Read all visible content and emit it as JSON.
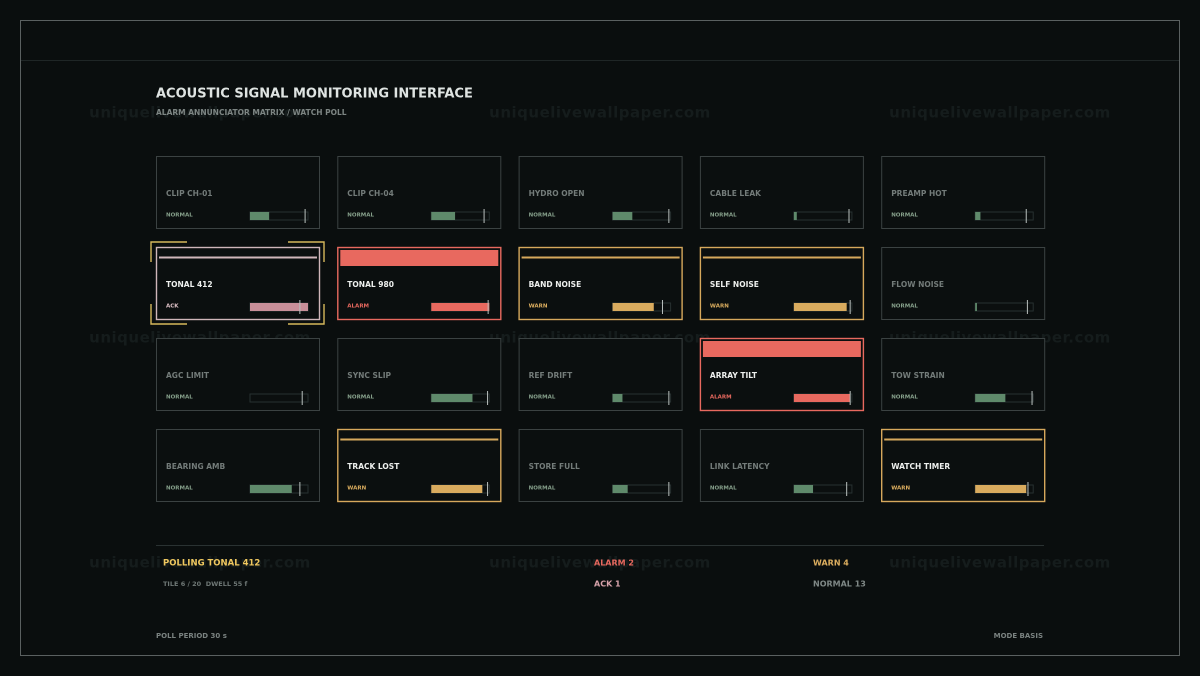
{
  "header": {
    "title": "ACOUSTIC SIGNAL MONITORING INTERFACE",
    "subtitle": "ALARM ANNUNCIATOR MATRIX / WATCH POLL"
  },
  "watermark": "uniquelivewallpaper.com",
  "tiles": [
    {
      "label": "CLIP CH-01",
      "status": "NORMAL",
      "level": 33,
      "threshold": 95
    },
    {
      "label": "CLIP CH-04",
      "status": "NORMAL",
      "level": 41,
      "threshold": 91
    },
    {
      "label": "HYDRO OPEN",
      "status": "NORMAL",
      "level": 34,
      "threshold": 97
    },
    {
      "label": "CABLE LEAK",
      "status": "NORMAL",
      "level": 5,
      "threshold": 95
    },
    {
      "label": "PREAMP HOT",
      "status": "NORMAL",
      "level": 9,
      "threshold": 88
    },
    {
      "label": "TONAL 412",
      "status": "ACK",
      "level": 100,
      "threshold": 86,
      "selected": true
    },
    {
      "label": "TONAL 980",
      "status": "ALARM",
      "level": 100,
      "threshold": 98
    },
    {
      "label": "BAND NOISE",
      "status": "WARN",
      "level": 71,
      "threshold": 86
    },
    {
      "label": "SELF NOISE",
      "status": "WARN",
      "level": 91,
      "threshold": 97
    },
    {
      "label": "FLOW NOISE",
      "status": "NORMAL",
      "level": 3,
      "threshold": 90
    },
    {
      "label": "AGC LIMIT",
      "status": "NORMAL",
      "level": 0,
      "threshold": 90
    },
    {
      "label": "SYNC SLIP",
      "status": "NORMAL",
      "level": 71,
      "threshold": 97
    },
    {
      "label": "REF DRIFT",
      "status": "NORMAL",
      "level": 17,
      "threshold": 97
    },
    {
      "label": "ARRAY TILT",
      "status": "ALARM",
      "level": 97,
      "threshold": 97
    },
    {
      "label": "TOW STRAIN",
      "status": "NORMAL",
      "level": 52,
      "threshold": 98
    },
    {
      "label": "BEARING AMB",
      "status": "NORMAL",
      "level": 72,
      "threshold": 86
    },
    {
      "label": "TRACK LOST",
      "status": "WARN",
      "level": 88,
      "threshold": 97
    },
    {
      "label": "STORE FULL",
      "status": "NORMAL",
      "level": 26,
      "threshold": 97
    },
    {
      "label": "LINK LATENCY",
      "status": "NORMAL",
      "level": 33,
      "threshold": 91
    },
    {
      "label": "WATCH TIMER",
      "status": "WARN",
      "level": 88,
      "threshold": 91
    }
  ],
  "footer": {
    "polling": "POLLING TONAL 412",
    "detail": "TILE 6 / 20  DWELL 55 f",
    "alarm": "ALARM 2",
    "ack": "ACK 1",
    "warn": "WARN 4",
    "normal": "NORMAL 13",
    "period": "POLL PERIOD 30 s",
    "mode": "MODE BASIS"
  }
}
